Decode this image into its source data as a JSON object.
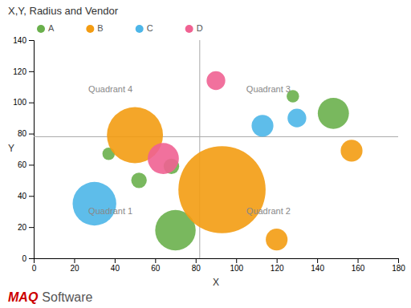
{
  "chart_data": {
    "type": "scatter",
    "title": "X,Y, Radius and Vendor",
    "xlabel": "X",
    "ylabel": "Y",
    "xlim": [
      0,
      180
    ],
    "ylim": [
      0,
      140
    ],
    "xticks": [
      0,
      20,
      40,
      60,
      80,
      100,
      120,
      140,
      160,
      180
    ],
    "yticks": [
      0,
      20,
      40,
      60,
      80,
      100,
      120,
      140
    ],
    "grid": false,
    "legend": "top",
    "quadrant_x": 82,
    "quadrant_y": 78,
    "series": [
      {
        "name": "A",
        "color": "#6ab04c",
        "x": [
          37,
          52,
          68,
          70,
          128,
          148
        ],
        "values": [
          67,
          50,
          59,
          18,
          104,
          93
        ],
        "sizes": [
          4,
          5,
          5,
          13,
          4,
          10
        ]
      },
      {
        "name": "B",
        "color": "#f39c12",
        "x": [
          50,
          93,
          120,
          157
        ],
        "values": [
          79,
          44,
          12,
          69
        ],
        "sizes": [
          18,
          28,
          7,
          7
        ]
      },
      {
        "name": "C",
        "color": "#4db6e8",
        "x": [
          30,
          113,
          130
        ],
        "values": [
          35,
          85,
          90
        ],
        "sizes": [
          14,
          7,
          6
        ]
      },
      {
        "name": "D",
        "color": "#f06292",
        "x": [
          64,
          90
        ],
        "values": [
          64,
          114
        ],
        "sizes": [
          10,
          6
        ]
      }
    ],
    "annotations": [
      {
        "text": "Quadrant 4",
        "x": 27,
        "y": 108
      },
      {
        "text": "Quadrant 3",
        "x": 105,
        "y": 108
      },
      {
        "text": "Quadrant 1",
        "x": 27,
        "y": 30
      },
      {
        "text": "Quadrant 2",
        "x": 105,
        "y": 30
      }
    ],
    "footer": [
      {
        "text": "MAQ",
        "color": "#cc0000"
      },
      {
        "text": "Software",
        "color": "#555555"
      }
    ]
  }
}
